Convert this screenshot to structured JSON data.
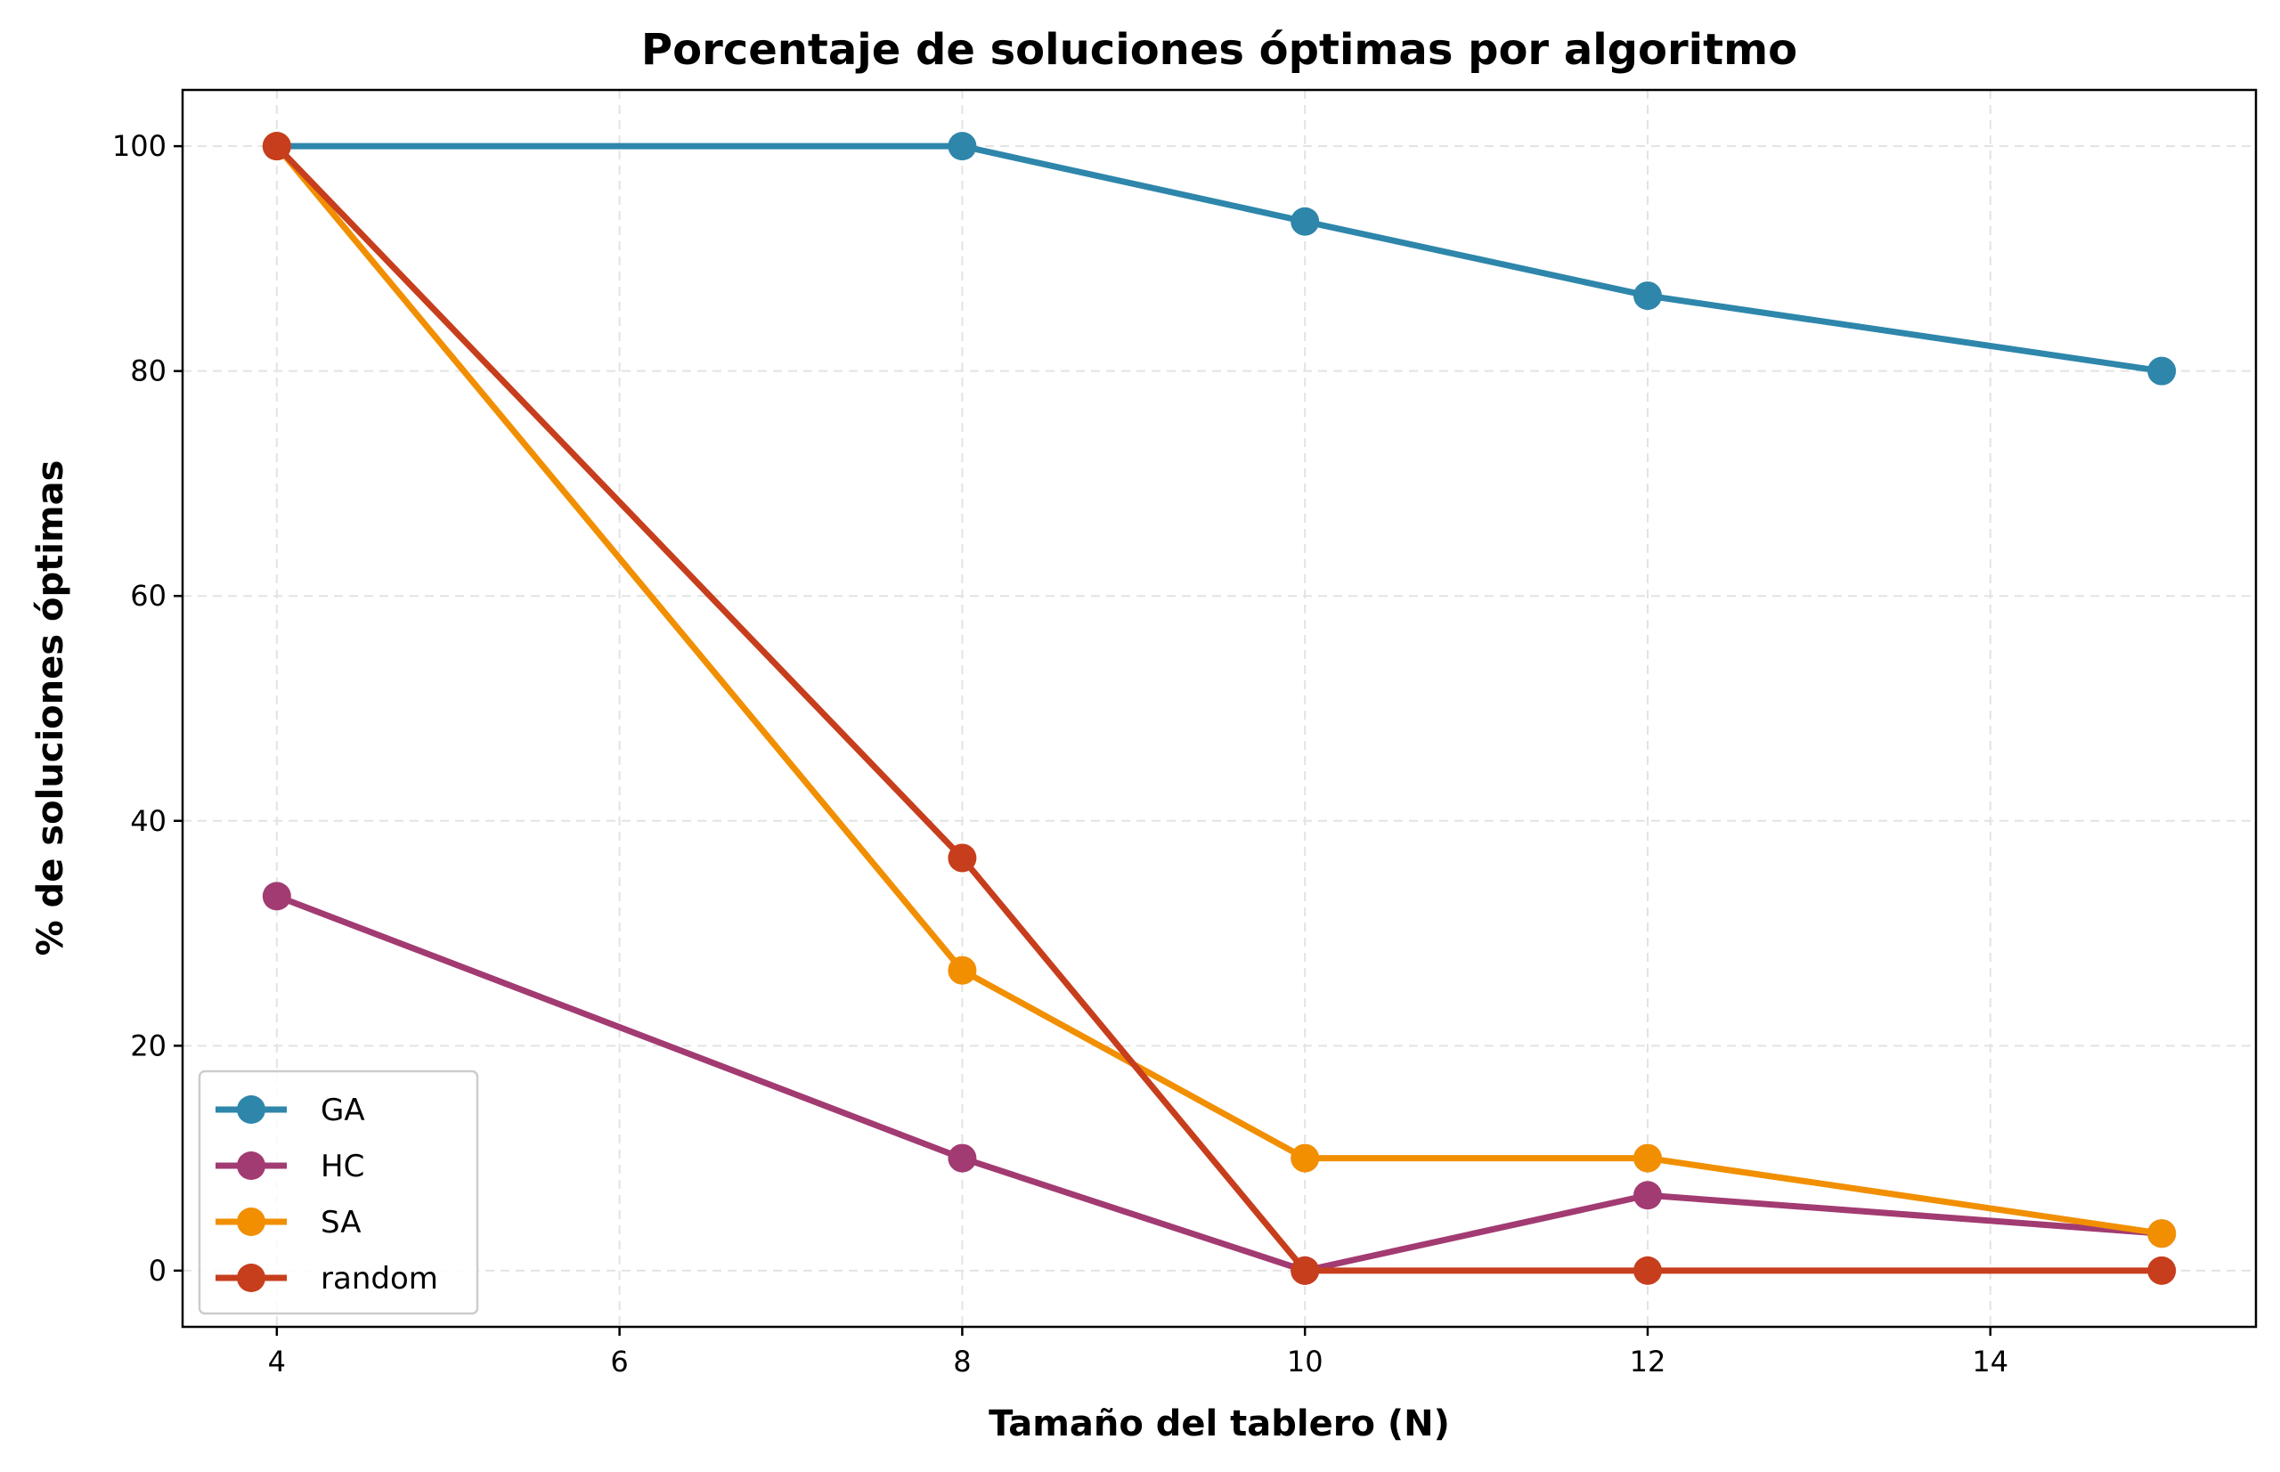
{
  "chart_data": {
    "type": "line",
    "title": "Porcentaje de soluciones óptimas por algoritmo",
    "xlabel": "Tamaño del tablero (N)",
    "ylabel": "% de soluciones óptimas",
    "x": [
      4,
      8,
      10,
      12,
      15
    ],
    "xlim": [
      3.45,
      15.55
    ],
    "ylim": [
      -5,
      105
    ],
    "xticks": [
      4,
      6,
      8,
      10,
      12,
      14
    ],
    "yticks": [
      0,
      20,
      40,
      60,
      80,
      100
    ],
    "grid": true,
    "legend_position": "lower-left",
    "series": [
      {
        "name": "GA",
        "color": "#2e86ab",
        "values": [
          100,
          100,
          93.3,
          86.7,
          80
        ]
      },
      {
        "name": "HC",
        "color": "#a23b72",
        "values": [
          33.3,
          10,
          0,
          6.7,
          3.3
        ]
      },
      {
        "name": "SA",
        "color": "#f18f01",
        "values": [
          100,
          26.7,
          10,
          10,
          3.3
        ]
      },
      {
        "name": "random",
        "color": "#c73e1d",
        "values": [
          100,
          36.7,
          0,
          0,
          0
        ]
      }
    ]
  }
}
